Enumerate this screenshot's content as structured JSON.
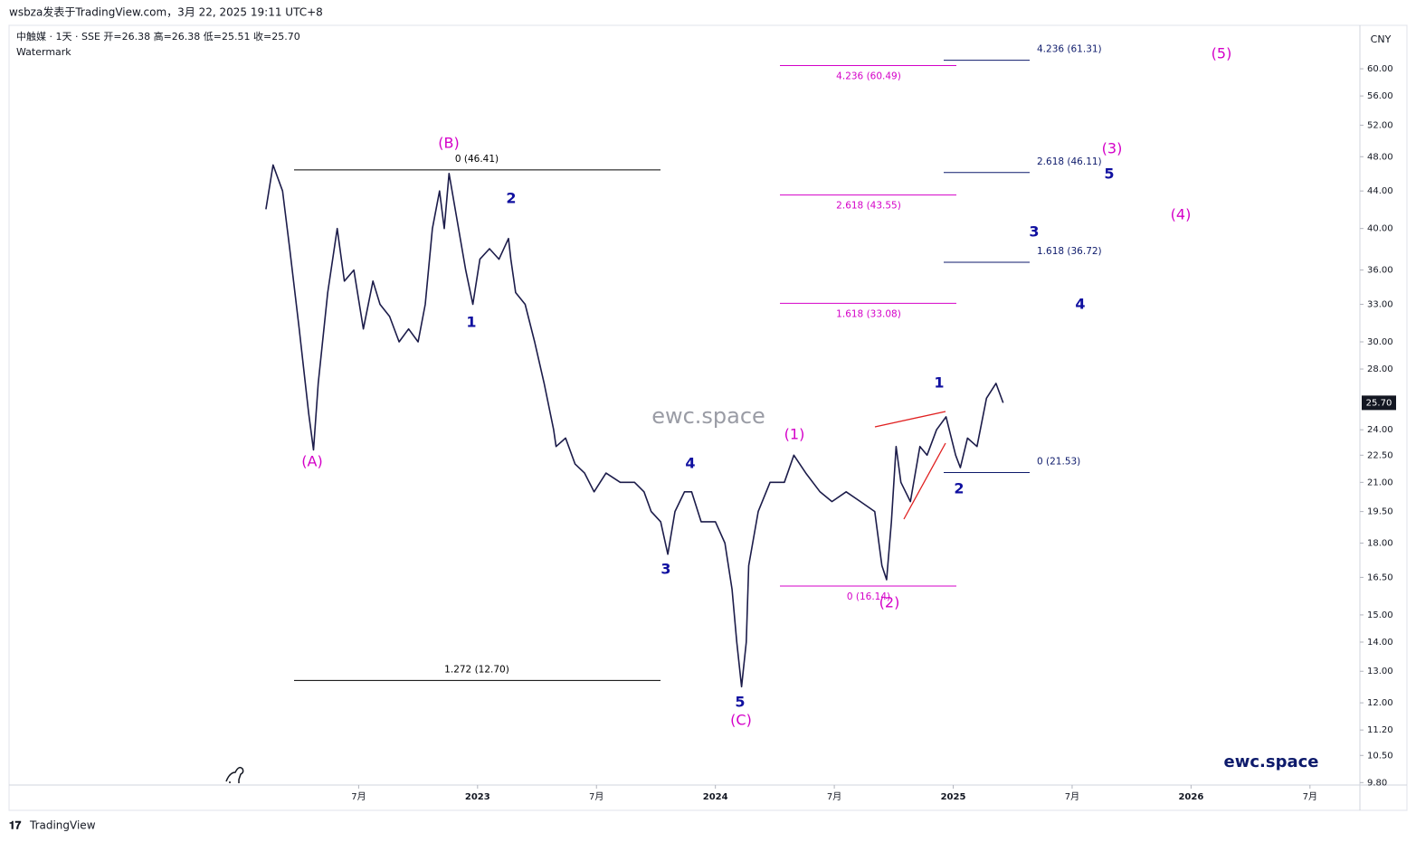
{
  "header": "wsbza发表于TradingView.com，3月 22, 2025 19:11 UTC+8",
  "footer": "TradingView",
  "chart_data": {
    "type": "line",
    "symbol_line": "中触媒 · 1天 · SSE   开=26.38  高=26.38  低=25.51  收=25.70",
    "watermark_label": "Watermark",
    "currency": "CNY",
    "watermark": "ewc.space",
    "brand": "ewc.space",
    "log_scale": true,
    "grid": false,
    "xlim": [
      2021.03,
      2026.71
    ],
    "xticks": [
      {
        "value": 2022.5,
        "label": "7月"
      },
      2023,
      {
        "value": 2023.5,
        "label": "7月"
      },
      2024,
      {
        "value": 2024.5,
        "label": "7月"
      },
      2025,
      {
        "value": 2025.5,
        "label": "7月"
      },
      2026,
      {
        "value": 2026.5,
        "label": "7月"
      }
    ],
    "ylim": [
      9.74,
      67.0
    ],
    "yticks": [
      {
        "value": 60,
        "label": "60.00"
      },
      {
        "value": 56,
        "label": "56.00"
      },
      {
        "value": 52,
        "label": "52.00"
      },
      {
        "value": 48,
        "label": "48.00"
      },
      {
        "value": 44,
        "label": "44.00"
      },
      {
        "value": 40,
        "label": "40.00"
      },
      {
        "value": 36,
        "label": "36.00"
      },
      {
        "value": 33,
        "label": "33.00"
      },
      {
        "value": 30,
        "label": "30.00"
      },
      {
        "value": 28,
        "label": "28.00"
      },
      {
        "value": 24,
        "label": "24.00"
      },
      {
        "value": 22.5,
        "label": "22.50"
      },
      {
        "value": 21,
        "label": "21.00"
      },
      {
        "value": 19.5,
        "label": "19.50"
      },
      {
        "value": 18,
        "label": "18.00"
      },
      {
        "value": 16.5,
        "label": "16.50"
      },
      {
        "value": 15,
        "label": "15.00"
      },
      {
        "value": 14,
        "label": "14.00"
      },
      {
        "value": 13,
        "label": "13.00"
      },
      {
        "value": 12,
        "label": "12.00"
      },
      {
        "value": 11.2,
        "label": "11.20"
      },
      {
        "value": 10.5,
        "label": "10.50"
      },
      {
        "value": 9.8,
        "label": "9.80"
      }
    ],
    "last_price": {
      "value": 25.7,
      "label": "25.70"
    },
    "series": [
      {
        "name": "中触媒",
        "color": "#1c1c4a",
        "x": [
          2022.11,
          2022.14,
          2022.18,
          2022.21,
          2022.25,
          2022.29,
          2022.31,
          2022.33,
          2022.37,
          2022.41,
          2022.44,
          2022.48,
          2022.52,
          2022.56,
          2022.59,
          2022.63,
          2022.67,
          2022.71,
          2022.75,
          2022.78,
          2022.81,
          2022.84,
          2022.86,
          2022.88,
          2022.92,
          2022.95,
          2022.98,
          2023.01,
          2023.05,
          2023.09,
          2023.13,
          2023.14,
          2023.16,
          2023.2,
          2023.24,
          2023.28,
          2023.32,
          2023.33,
          2023.37,
          2023.41,
          2023.45,
          2023.49,
          2023.54,
          2023.6,
          2023.66,
          2023.7,
          2023.73,
          2023.77,
          2023.8,
          2023.83,
          2023.87,
          2023.9,
          2023.94,
          2024.0,
          2024.04,
          2024.07,
          2024.09,
          2024.11,
          2024.13,
          2024.14,
          2024.18,
          2024.23,
          2024.29,
          2024.33,
          2024.38,
          2024.44,
          2024.49,
          2024.55,
          2024.61,
          2024.67,
          2024.7,
          2024.72,
          2024.74,
          2024.76,
          2024.78,
          2024.82,
          2024.86,
          2024.89,
          2024.93,
          2024.97,
          2025.01,
          2025.03,
          2025.06,
          2025.1,
          2025.14,
          2025.18,
          2025.21
        ],
        "values": [
          42,
          47,
          44,
          38,
          31,
          25,
          22.8,
          27,
          34,
          40,
          35,
          36,
          31,
          35,
          33,
          32,
          30,
          31,
          30,
          33,
          40,
          44,
          40,
          46,
          40,
          36,
          33,
          37,
          38,
          37,
          39,
          37,
          34,
          33,
          30,
          27,
          24,
          23,
          23.5,
          22,
          21.5,
          20.5,
          21.5,
          21,
          21,
          20.5,
          19.5,
          19,
          17.5,
          19.5,
          20.5,
          20.5,
          19,
          19,
          18,
          16,
          14,
          12.5,
          14,
          17,
          19.5,
          21,
          21,
          22.5,
          21.5,
          20.5,
          20,
          20.5,
          20,
          19.5,
          17,
          16.4,
          19,
          23,
          21,
          20,
          23,
          22.5,
          24,
          24.8,
          22.5,
          21.8,
          23.5,
          23,
          26,
          27,
          25.7
        ]
      }
    ],
    "fib_sets": [
      {
        "color": "#000000",
        "levels": [
          {
            "label": "0 (46.41)",
            "value": 46.41
          },
          {
            "label": "1.272 (12.70)",
            "value": 12.7
          }
        ]
      },
      {
        "color": "#d400c8",
        "levels": [
          {
            "label": "4.236 (60.49)",
            "value": 60.49
          },
          {
            "label": "2.618 (43.55)",
            "value": 43.55
          },
          {
            "label": "1.618 (33.08)",
            "value": 33.08
          },
          {
            "label": "0 (16.14)",
            "value": 16.14
          }
        ]
      },
      {
        "color": "#0d1a6b",
        "levels": [
          {
            "label": "4.236 (61.31)",
            "value": 61.31
          },
          {
            "label": "2.618 (46.11)",
            "value": 46.11
          },
          {
            "label": "1.618 (36.72)",
            "value": 36.72
          },
          {
            "label": "0 (21.53)",
            "value": 21.53
          }
        ]
      }
    ],
    "wave_labels": [
      {
        "text": "(A)",
        "color": "#d400c8"
      },
      {
        "text": "(B)",
        "color": "#d400c8"
      },
      {
        "text": "(C)",
        "color": "#d400c8"
      },
      {
        "text": "(1)",
        "color": "#d400c8"
      },
      {
        "text": "(2)",
        "color": "#d400c8"
      },
      {
        "text": "(3)",
        "color": "#d400c8"
      },
      {
        "text": "(4)",
        "color": "#d400c8"
      },
      {
        "text": "(5)",
        "color": "#d400c8"
      },
      {
        "text": "1",
        "color": "#1010a0"
      },
      {
        "text": "2",
        "color": "#1010a0"
      },
      {
        "text": "3",
        "color": "#1010a0"
      },
      {
        "text": "4",
        "color": "#1010a0"
      },
      {
        "text": "5",
        "color": "#1010a0"
      },
      {
        "text": "1",
        "color": "#1010a0"
      },
      {
        "text": "2",
        "color": "#1010a0"
      },
      {
        "text": "3",
        "color": "#1010a0"
      },
      {
        "text": "4",
        "color": "#1010a0"
      },
      {
        "text": "5",
        "color": "#1010a0"
      }
    ]
  }
}
